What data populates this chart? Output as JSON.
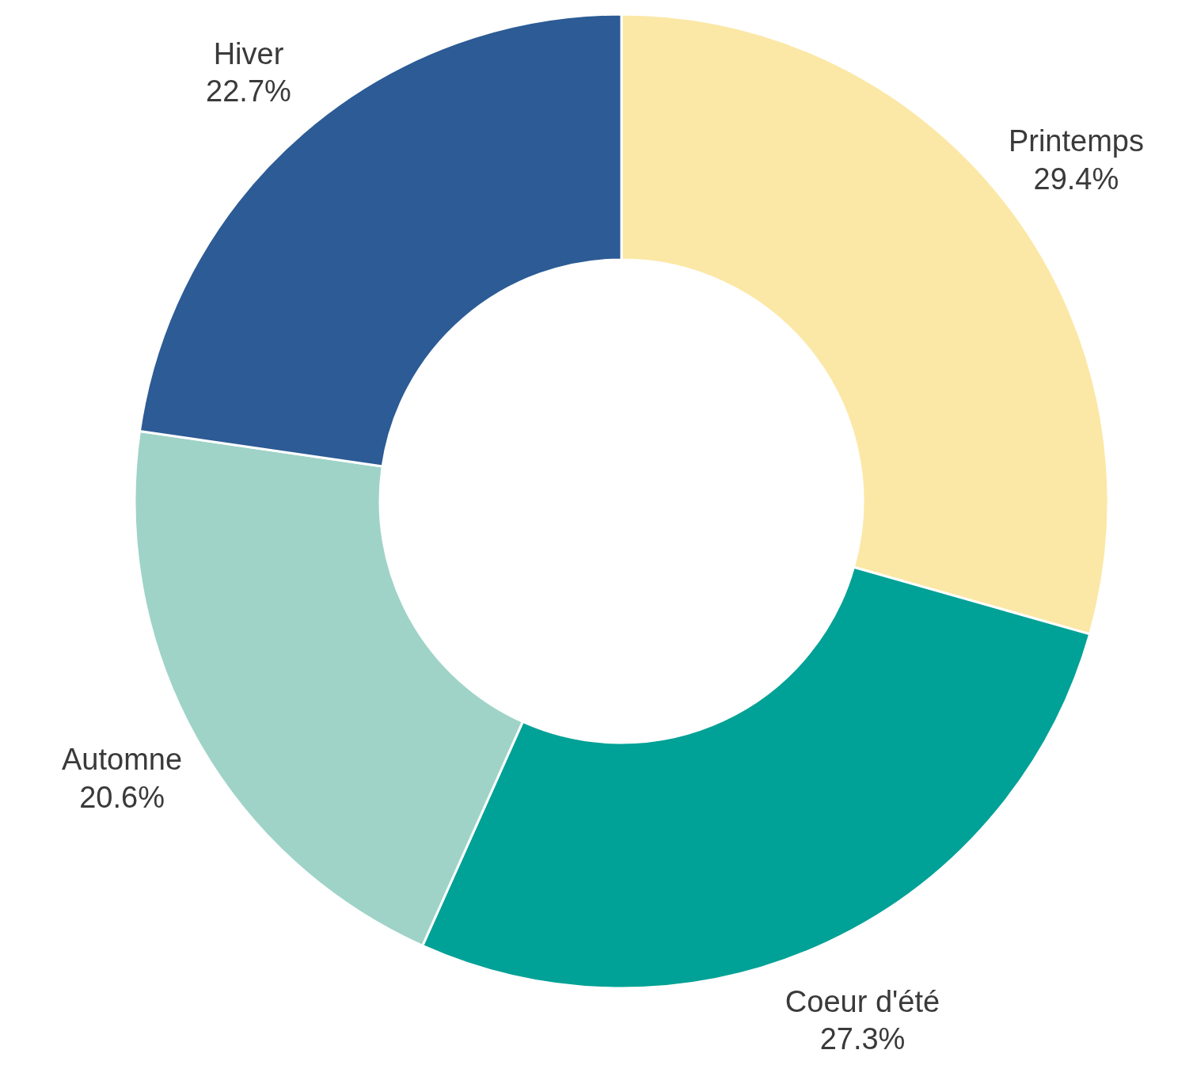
{
  "chart_data": {
    "type": "donut",
    "categories": [
      "Printemps",
      "Coeur d'été",
      "Automne",
      "Hiver"
    ],
    "values": [
      29.4,
      27.3,
      20.6,
      22.7
    ],
    "colors": [
      "#fbe8a6",
      "#00a196",
      "#9fd3c8",
      "#2c5b95"
    ],
    "value_labels": [
      "29.4%",
      "27.3%",
      "20.6%",
      "22.7%"
    ]
  }
}
